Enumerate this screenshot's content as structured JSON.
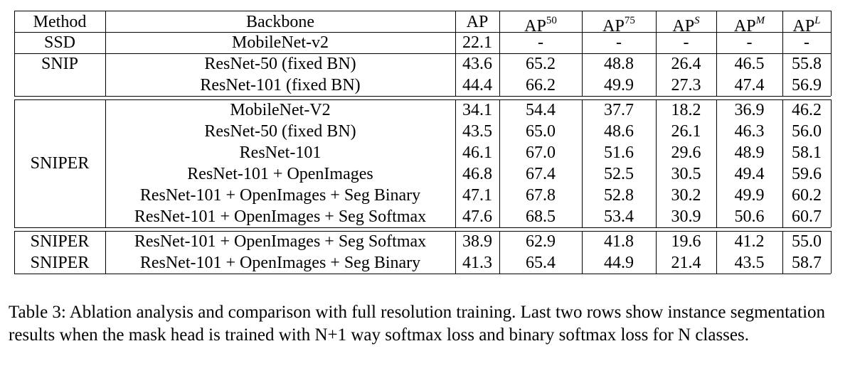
{
  "table": {
    "header": {
      "method": "Method",
      "backbone": "Backbone",
      "ap": "AP",
      "ap50": {
        "base": "AP",
        "sup": "50"
      },
      "ap75": {
        "base": "AP",
        "sup": "75"
      },
      "aps": {
        "base": "AP",
        "sup": "S"
      },
      "apm": {
        "base": "AP",
        "sup": "M"
      },
      "apl": {
        "base": "AP",
        "sup": "L"
      }
    },
    "groups": [
      {
        "method": "SSD",
        "rows": [
          {
            "backbone": "MobileNet-v2",
            "values": [
              "22.1",
              "-",
              "-",
              "-",
              "-",
              "-"
            ]
          }
        ]
      },
      {
        "method": "SNIP",
        "rows": [
          {
            "backbone": "ResNet-50 (fixed BN)",
            "values": [
              "43.6",
              "65.2",
              "48.8",
              "26.4",
              "46.5",
              "55.8"
            ]
          },
          {
            "backbone": "ResNet-101 (fixed BN)",
            "values": [
              "44.4",
              "66.2",
              "49.9",
              "27.3",
              "47.4",
              "56.9"
            ]
          }
        ]
      },
      {
        "method": "SNIPER",
        "rows": [
          {
            "backbone": "MobileNet-V2",
            "values": [
              "34.1",
              "54.4",
              "37.7",
              "18.2",
              "36.9",
              "46.2"
            ]
          },
          {
            "backbone": "ResNet-50 (fixed BN)",
            "values": [
              "43.5",
              "65.0",
              "48.6",
              "26.1",
              "46.3",
              "56.0"
            ]
          },
          {
            "backbone": "ResNet-101",
            "values": [
              "46.1",
              "67.0",
              "51.6",
              "29.6",
              "48.9",
              "58.1"
            ]
          },
          {
            "backbone": "ResNet-101 + OpenImages",
            "values": [
              "46.8",
              "67.4",
              "52.5",
              "30.5",
              "49.4",
              "59.6"
            ]
          },
          {
            "backbone": "ResNet-101 + OpenImages + Seg Binary",
            "values": [
              "47.1",
              "67.8",
              "52.8",
              "30.2",
              "49.9",
              "60.2"
            ]
          },
          {
            "backbone": "ResNet-101 + OpenImages + Seg Softmax",
            "values": [
              "47.6",
              "68.5",
              "53.4",
              "30.9",
              "50.6",
              "60.7"
            ]
          }
        ]
      },
      {
        "method": "",
        "rows": [
          {
            "method": "SNIPER",
            "backbone": "ResNet-101 + OpenImages + Seg Softmax",
            "values": [
              "38.9",
              "62.9",
              "41.8",
              "19.6",
              "41.2",
              "55.0"
            ]
          },
          {
            "method": "SNIPER",
            "backbone": "ResNet-101 + OpenImages + Seg Binary",
            "values": [
              "41.3",
              "65.4",
              "44.9",
              "21.4",
              "43.5",
              "58.7"
            ]
          }
        ]
      }
    ]
  },
  "caption": "Table 3: Ablation analysis and comparison with full resolution training. Last two rows show instance segmentation results when the mask head is trained with N+1 way softmax loss and binary softmax loss for N classes."
}
